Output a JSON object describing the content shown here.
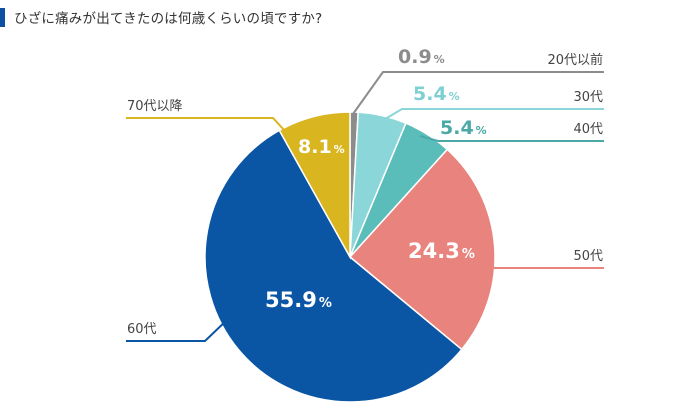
{
  "title": "ひざに痛みが出てきたのは何歳くらいの頃ですか?",
  "chart_data": {
    "type": "pie",
    "unit": "%",
    "slices": [
      {
        "label": "20代以前",
        "value": 0.9,
        "value_text": "0.9",
        "color": "#8c8c8c",
        "label_color": "#8c8c8c"
      },
      {
        "label": "30代",
        "value": 5.4,
        "value_text": "5.4",
        "color": "#8bd6d8",
        "label_color": "#7ed0d3"
      },
      {
        "label": "40代",
        "value": 5.4,
        "value_text": "5.4",
        "color": "#5bbdb9",
        "label_color": "#4aa9a6"
      },
      {
        "label": "50代",
        "value": 24.3,
        "value_text": "24.3",
        "color": "#e8837d",
        "label_color": "#ffffff"
      },
      {
        "label": "60代",
        "value": 55.9,
        "value_text": "55.9",
        "color": "#0b56a4",
        "label_color": "#ffffff"
      },
      {
        "label": "70代以降",
        "value": 8.1,
        "value_text": "8.1",
        "color": "#d9b51f",
        "label_color": "#ffffff"
      }
    ]
  }
}
